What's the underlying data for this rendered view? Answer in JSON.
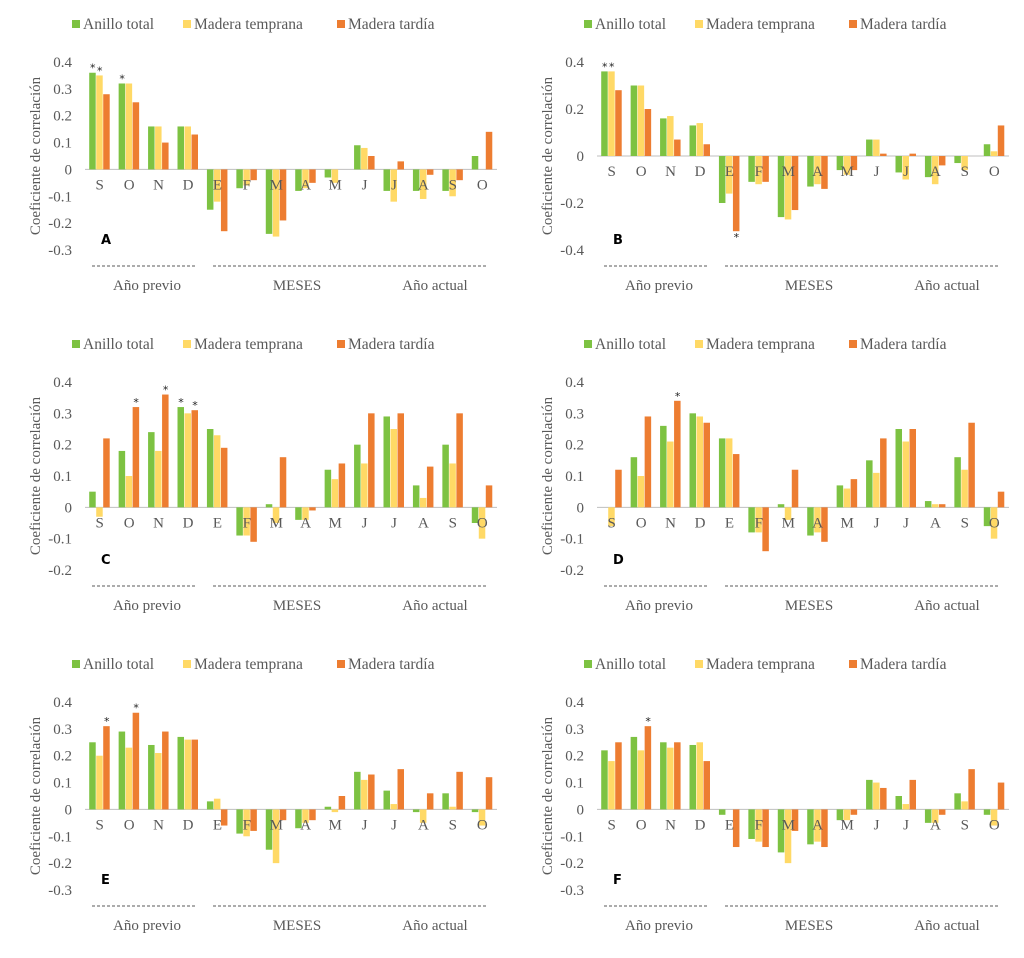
{
  "legend": {
    "series_names": [
      "Anillo total",
      "Madera temprana",
      "Madera tardía"
    ],
    "series_colors": [
      "#7DC242",
      "#FFD966",
      "#ED7D31"
    ]
  },
  "common": {
    "ylabel": "Coeficiente de correlación",
    "categories": [
      "S",
      "O",
      "N",
      "D",
      "E",
      "F",
      "M",
      "A",
      "M",
      "J",
      "J",
      "A",
      "S",
      "O"
    ],
    "group_labels": [
      "Año previo",
      "MESES",
      "Año actual"
    ],
    "axis_color": "#BFBFBF"
  },
  "chart_data": [
    {
      "type": "bar",
      "panel": "A",
      "title": "",
      "xlabel": "MESES",
      "ylabel": "Coeficiente de correlación",
      "categories": [
        "S",
        "O",
        "N",
        "D",
        "E",
        "F",
        "M",
        "A",
        "M",
        "J",
        "J",
        "A",
        "S",
        "O"
      ],
      "ylim": [
        -0.3,
        0.4
      ],
      "yticks": [
        0.4,
        0.3,
        0.2,
        0.1,
        0,
        -0.1,
        -0.2,
        -0.3
      ],
      "ytick_labels": [
        "0.4",
        "0.3",
        "0.2",
        "0.1",
        "0",
        "-0.1",
        "-0.2",
        "-0.3"
      ],
      "series": [
        {
          "name": "Anillo total",
          "values": [
            0.36,
            0.32,
            0.16,
            0.16,
            -0.15,
            -0.07,
            -0.24,
            -0.08,
            -0.03,
            0.09,
            -0.08,
            -0.08,
            -0.08,
            0.05
          ]
        },
        {
          "name": "Madera temprana",
          "values": [
            0.35,
            0.32,
            0.16,
            0.16,
            -0.12,
            -0.06,
            -0.25,
            -0.07,
            -0.05,
            0.08,
            -0.12,
            -0.11,
            -0.1,
            0.0
          ]
        },
        {
          "name": "Madera tardía",
          "values": [
            0.28,
            0.25,
            0.1,
            0.13,
            -0.23,
            -0.04,
            -0.19,
            -0.05,
            0.0,
            0.05,
            0.03,
            -0.02,
            -0.04,
            0.14
          ]
        }
      ],
      "significance": [
        {
          "series": 0,
          "category": 0,
          "label": "*"
        },
        {
          "series": 1,
          "category": 0,
          "label": "*"
        },
        {
          "series": 0,
          "category": 1,
          "label": "*"
        }
      ],
      "grid": false,
      "legend_position": "top"
    },
    {
      "type": "bar",
      "panel": "B",
      "title": "",
      "xlabel": "MESES",
      "ylabel": "Coeficiente de correlación",
      "categories": [
        "S",
        "O",
        "N",
        "D",
        "E",
        "F",
        "M",
        "A",
        "M",
        "J",
        "J",
        "A",
        "S",
        "O"
      ],
      "ylim": [
        -0.4,
        0.4
      ],
      "yticks": [
        0.4,
        0.2,
        0,
        -0.2,
        -0.4
      ],
      "ytick_labels": [
        "0.4",
        "0.2",
        "0",
        "-0.2",
        "-0.4"
      ],
      "series": [
        {
          "name": "Anillo total",
          "values": [
            0.36,
            0.3,
            0.16,
            0.13,
            -0.2,
            -0.11,
            -0.26,
            -0.13,
            -0.06,
            0.07,
            -0.07,
            -0.09,
            -0.03,
            0.05
          ]
        },
        {
          "name": "Madera temprana",
          "values": [
            0.36,
            0.3,
            0.17,
            0.14,
            -0.16,
            -0.12,
            -0.27,
            -0.12,
            -0.08,
            0.07,
            -0.1,
            -0.12,
            -0.06,
            0.02
          ]
        },
        {
          "name": "Madera tardía",
          "values": [
            0.28,
            0.2,
            0.07,
            0.05,
            -0.32,
            -0.11,
            -0.23,
            -0.14,
            -0.06,
            0.01,
            0.01,
            -0.04,
            0.0,
            0.13
          ]
        }
      ],
      "significance": [
        {
          "series": 0,
          "category": 0,
          "label": "*"
        },
        {
          "series": 1,
          "category": 0,
          "label": "*"
        },
        {
          "series": 2,
          "category": 4,
          "label": "*"
        }
      ],
      "grid": false,
      "legend_position": "top"
    },
    {
      "type": "bar",
      "panel": "C",
      "title": "",
      "xlabel": "MESES",
      "ylabel": "Coeficiente de correlación",
      "categories": [
        "S",
        "O",
        "N",
        "D",
        "E",
        "F",
        "M",
        "A",
        "M",
        "J",
        "J",
        "A",
        "S",
        "O"
      ],
      "ylim": [
        -0.2,
        0.4
      ],
      "yticks": [
        0.4,
        0.3,
        0.2,
        0.1,
        0,
        -0.1,
        -0.2
      ],
      "ytick_labels": [
        "0.4",
        "0.3",
        "0.2",
        "0.1",
        "0",
        "-0.1",
        "-0.2"
      ],
      "series": [
        {
          "name": "Anillo total",
          "values": [
            0.05,
            0.18,
            0.24,
            0.32,
            0.25,
            -0.09,
            0.01,
            -0.04,
            0.12,
            0.2,
            0.29,
            0.07,
            0.2,
            -0.05
          ]
        },
        {
          "name": "Madera temprana",
          "values": [
            -0.03,
            0.1,
            0.18,
            0.3,
            0.23,
            -0.09,
            -0.05,
            -0.04,
            0.09,
            0.14,
            0.25,
            0.03,
            0.14,
            -0.1
          ]
        },
        {
          "name": "Madera tardía",
          "values": [
            0.22,
            0.32,
            0.36,
            0.31,
            0.19,
            -0.11,
            0.16,
            -0.01,
            0.14,
            0.3,
            0.3,
            0.13,
            0.3,
            0.07
          ]
        }
      ],
      "significance": [
        {
          "series": 2,
          "category": 1,
          "label": "*"
        },
        {
          "series": 2,
          "category": 2,
          "label": "*"
        },
        {
          "series": 0,
          "category": 3,
          "label": "*"
        },
        {
          "series": 2,
          "category": 3,
          "label": "*"
        }
      ],
      "grid": false,
      "legend_position": "top"
    },
    {
      "type": "bar",
      "panel": "D",
      "title": "",
      "xlabel": "MESES",
      "ylabel": "Coeficiente de correlación",
      "categories": [
        "S",
        "O",
        "N",
        "D",
        "E",
        "F",
        "M",
        "A",
        "M",
        "J",
        "J",
        "A",
        "S",
        "O"
      ],
      "ylim": [
        -0.2,
        0.4
      ],
      "yticks": [
        0.4,
        0.3,
        0.2,
        0.1,
        0,
        -0.1,
        -0.2
      ],
      "ytick_labels": [
        "0.4",
        "0.3",
        "0.2",
        "0.1",
        "0",
        "-0.1",
        "-0.2"
      ],
      "series": [
        {
          "name": "Anillo total",
          "values": [
            0.0,
            0.16,
            0.26,
            0.3,
            0.22,
            -0.08,
            0.01,
            -0.09,
            0.07,
            0.15,
            0.25,
            0.02,
            0.16,
            -0.06
          ]
        },
        {
          "name": "Madera temprana",
          "values": [
            -0.06,
            0.1,
            0.21,
            0.29,
            0.22,
            -0.08,
            -0.04,
            -0.08,
            0.06,
            0.11,
            0.21,
            0.01,
            0.12,
            -0.1
          ]
        },
        {
          "name": "Madera tardía",
          "values": [
            0.12,
            0.29,
            0.34,
            0.27,
            0.17,
            -0.14,
            0.12,
            -0.11,
            0.09,
            0.22,
            0.25,
            0.01,
            0.27,
            0.05
          ]
        }
      ],
      "significance": [
        {
          "series": 2,
          "category": 2,
          "label": "*"
        }
      ],
      "grid": false,
      "legend_position": "top"
    },
    {
      "type": "bar",
      "panel": "E",
      "title": "",
      "xlabel": "MESES",
      "ylabel": "Coeficiente de correlación",
      "categories": [
        "S",
        "O",
        "N",
        "D",
        "E",
        "F",
        "M",
        "A",
        "M",
        "J",
        "J",
        "A",
        "S",
        "O"
      ],
      "ylim": [
        -0.3,
        0.4
      ],
      "yticks": [
        0.4,
        0.3,
        0.2,
        0.1,
        0,
        -0.1,
        -0.2,
        -0.3
      ],
      "ytick_labels": [
        "0.4",
        "0.3",
        "0.2",
        "0.1",
        "0",
        "-0.1",
        "-0.2",
        "-0.3"
      ],
      "series": [
        {
          "name": "Anillo total",
          "values": [
            0.25,
            0.29,
            0.24,
            0.27,
            0.03,
            -0.09,
            -0.15,
            -0.07,
            0.01,
            0.14,
            0.07,
            -0.01,
            0.06,
            -0.01
          ]
        },
        {
          "name": "Madera temprana",
          "values": [
            0.2,
            0.23,
            0.21,
            0.26,
            0.04,
            -0.1,
            -0.2,
            -0.05,
            -0.01,
            0.11,
            0.02,
            -0.05,
            0.01,
            -0.06
          ]
        },
        {
          "name": "Madera tardía",
          "values": [
            0.31,
            0.36,
            0.29,
            0.26,
            -0.06,
            -0.08,
            -0.04,
            -0.04,
            0.05,
            0.13,
            0.15,
            0.06,
            0.14,
            0.12
          ]
        }
      ],
      "significance": [
        {
          "series": 2,
          "category": 0,
          "label": "*"
        },
        {
          "series": 2,
          "category": 1,
          "label": "*"
        }
      ],
      "grid": false,
      "legend_position": "top"
    },
    {
      "type": "bar",
      "panel": "F",
      "title": "",
      "xlabel": "MESES",
      "ylabel": "Coeficiente de correlación",
      "categories": [
        "S",
        "O",
        "N",
        "D",
        "E",
        "F",
        "M",
        "A",
        "M",
        "J",
        "J",
        "A",
        "S",
        "O"
      ],
      "ylim": [
        -0.3,
        0.4
      ],
      "yticks": [
        0.4,
        0.3,
        0.2,
        0.1,
        0,
        -0.1,
        -0.2,
        -0.3
      ],
      "ytick_labels": [
        "0.4",
        "0.3",
        "0.2",
        "0.1",
        "0",
        "-0.1",
        "-0.2",
        "-0.3"
      ],
      "series": [
        {
          "name": "Anillo total",
          "values": [
            0.22,
            0.27,
            0.25,
            0.24,
            -0.02,
            -0.11,
            -0.16,
            -0.13,
            -0.04,
            0.11,
            0.05,
            -0.05,
            0.06,
            -0.02
          ]
        },
        {
          "name": "Madera temprana",
          "values": [
            0.18,
            0.22,
            0.23,
            0.25,
            0.0,
            -0.12,
            -0.2,
            -0.12,
            -0.04,
            0.1,
            0.02,
            -0.05,
            0.03,
            -0.06
          ]
        },
        {
          "name": "Madera tardía",
          "values": [
            0.25,
            0.31,
            0.25,
            0.18,
            -0.14,
            -0.14,
            -0.08,
            -0.14,
            -0.02,
            0.08,
            0.11,
            -0.02,
            0.15,
            0.1
          ]
        }
      ],
      "significance": [
        {
          "series": 2,
          "category": 1,
          "label": "*"
        }
      ],
      "grid": false,
      "legend_position": "top"
    }
  ]
}
